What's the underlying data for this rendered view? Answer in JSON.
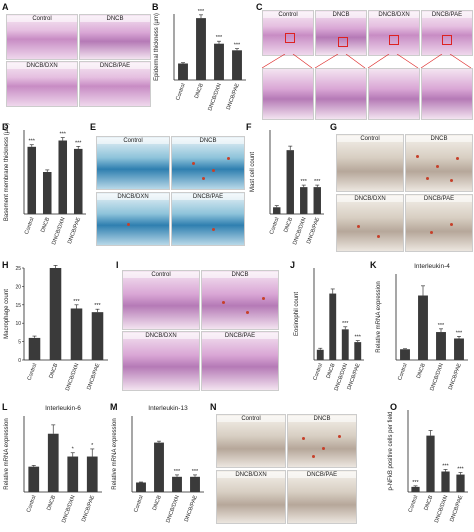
{
  "panels": {
    "A": {
      "letter": "A",
      "captions": [
        "Control",
        "DNCB",
        "DNCB/DXN",
        "DNCB/PAE"
      ]
    },
    "C": {
      "letter": "C",
      "captions": [
        "Control",
        "DNCB",
        "DNCB/DXN",
        "DNCB/PAE"
      ]
    },
    "E": {
      "letter": "E",
      "captions": [
        "Control",
        "DNCB",
        "DNCB/DXN",
        "DNCB/PAE"
      ]
    },
    "G": {
      "letter": "G",
      "captions": [
        "Control",
        "DNCB",
        "DNCB/DXN",
        "DNCB/PAE"
      ]
    },
    "I": {
      "letter": "I",
      "captions": [
        "Control",
        "DNCB",
        "DNCB/DXN",
        "DNCB/PAE"
      ]
    },
    "N": {
      "letter": "N",
      "captions": [
        "Control",
        "DNCB",
        "DNCB/DXN",
        "DNCB/PAE"
      ]
    }
  },
  "colors": {
    "bar": "#3a3a3a",
    "axis": "#222222"
  },
  "chart_data": [
    {
      "id": "B",
      "letter": "B",
      "type": "bar",
      "title": "",
      "ylabel": "Epidermal thickness (µm)",
      "categories": [
        "Control",
        "DNCB",
        "DNCB/DXN",
        "DNCB/PAE"
      ],
      "values": [
        20,
        75,
        44,
        36
      ],
      "errors": [
        1,
        4,
        3,
        2
      ],
      "marks": [
        "",
        "***",
        "***",
        "***"
      ],
      "ylim": [
        0,
        80
      ],
      "ticks": []
    },
    {
      "id": "D",
      "letter": "D",
      "type": "bar",
      "title": "",
      "ylabel": "Basement membrane thickness (µm)",
      "categories": [
        "Control",
        "DNCB",
        "DNCB/DXN",
        "DNCB/PAE"
      ],
      "values": [
        1.6,
        1.0,
        1.75,
        1.55
      ],
      "errors": [
        0.05,
        0.05,
        0.07,
        0.06
      ],
      "marks": [
        "***",
        "",
        "***",
        "***"
      ],
      "ylim": [
        0,
        2
      ],
      "ticks": []
    },
    {
      "id": "F",
      "letter": "F",
      "type": "bar",
      "title": "",
      "ylabel": "Mast cell count",
      "categories": [
        "Control",
        "DNCB",
        "DNCB/DXN",
        "DNCB/PAE"
      ],
      "values": [
        2,
        19,
        8,
        8
      ],
      "errors": [
        0.5,
        1.2,
        0.6,
        0.6
      ],
      "marks": [
        "",
        "",
        "***",
        "***"
      ],
      "ylim": [
        0,
        25
      ],
      "ticks": []
    },
    {
      "id": "H",
      "letter": "H",
      "type": "bar",
      "title": "",
      "ylabel": "Macrophage count",
      "categories": [
        "Control",
        "DNCB",
        "DNCB/DXN",
        "DNCB/PAE"
      ],
      "values": [
        6,
        25,
        14,
        13
      ],
      "errors": [
        0.5,
        0.7,
        1,
        0.8
      ],
      "marks": [
        "",
        "",
        "***",
        "***"
      ],
      "ylim": [
        0,
        25
      ],
      "ticks": [
        "25",
        "20",
        "15",
        "10",
        "5",
        "0"
      ]
    },
    {
      "id": "J",
      "letter": "J",
      "type": "bar",
      "title": "",
      "ylabel": "Eosinophil count",
      "categories": [
        "Control",
        "DNCB",
        "DNCB/DXN",
        "DNCB/PAE"
      ],
      "values": [
        2,
        13,
        6,
        3.5
      ],
      "errors": [
        0.3,
        0.9,
        0.5,
        0.3
      ],
      "marks": [
        "",
        "",
        "***",
        "***"
      ],
      "ylim": [
        0,
        18
      ],
      "ticks": []
    },
    {
      "id": "K",
      "letter": "K",
      "type": "bar",
      "title": "Interleukin-4",
      "ylabel": "Relative mRNA expression",
      "categories": [
        "Control",
        "DNCB",
        "DNCB/DXN",
        "DNCB/PAE"
      ],
      "values": [
        1,
        6,
        2.6,
        2
      ],
      "errors": [
        0.05,
        0.9,
        0.3,
        0.2
      ],
      "marks": [
        "",
        "",
        "***",
        "***"
      ],
      "ylim": [
        0,
        8
      ],
      "ticks": []
    },
    {
      "id": "L",
      "letter": "L",
      "type": "bar",
      "title": "Interleukin-6",
      "ylabel": "Relative mRNA expression",
      "categories": [
        "Control",
        "DNCB",
        "DNCB/DXN",
        "DNCB/PAE"
      ],
      "values": [
        1,
        2.3,
        1.4,
        1.4
      ],
      "errors": [
        0.05,
        0.35,
        0.15,
        0.3
      ],
      "marks": [
        "",
        "",
        "*",
        "*"
      ],
      "ylim": [
        0,
        3
      ],
      "ticks": []
    },
    {
      "id": "M",
      "letter": "M",
      "type": "bar",
      "title": "Interleukin-13",
      "ylabel": "Relative mRNA expression",
      "categories": [
        "Control",
        "DNCB",
        "DNCB/DXN",
        "DNCB/PAE"
      ],
      "values": [
        1,
        5.2,
        1.6,
        1.6
      ],
      "errors": [
        0.05,
        0.15,
        0.2,
        0.2
      ],
      "marks": [
        "",
        "",
        "***",
        "***"
      ],
      "ylim": [
        0,
        8
      ],
      "ticks": []
    },
    {
      "id": "O",
      "letter": "O",
      "type": "bar",
      "title": "",
      "ylabel": "p-NFkB positive cells per field",
      "categories": [
        "Control",
        "DNCB",
        "DNCB/DXN",
        "DNCB/PAE"
      ],
      "values": [
        5,
        55,
        20,
        17
      ],
      "errors": [
        1,
        5,
        2,
        2
      ],
      "marks": [
        "***",
        "",
        "***",
        "***"
      ],
      "ylim": [
        0,
        80
      ],
      "ticks": []
    }
  ]
}
